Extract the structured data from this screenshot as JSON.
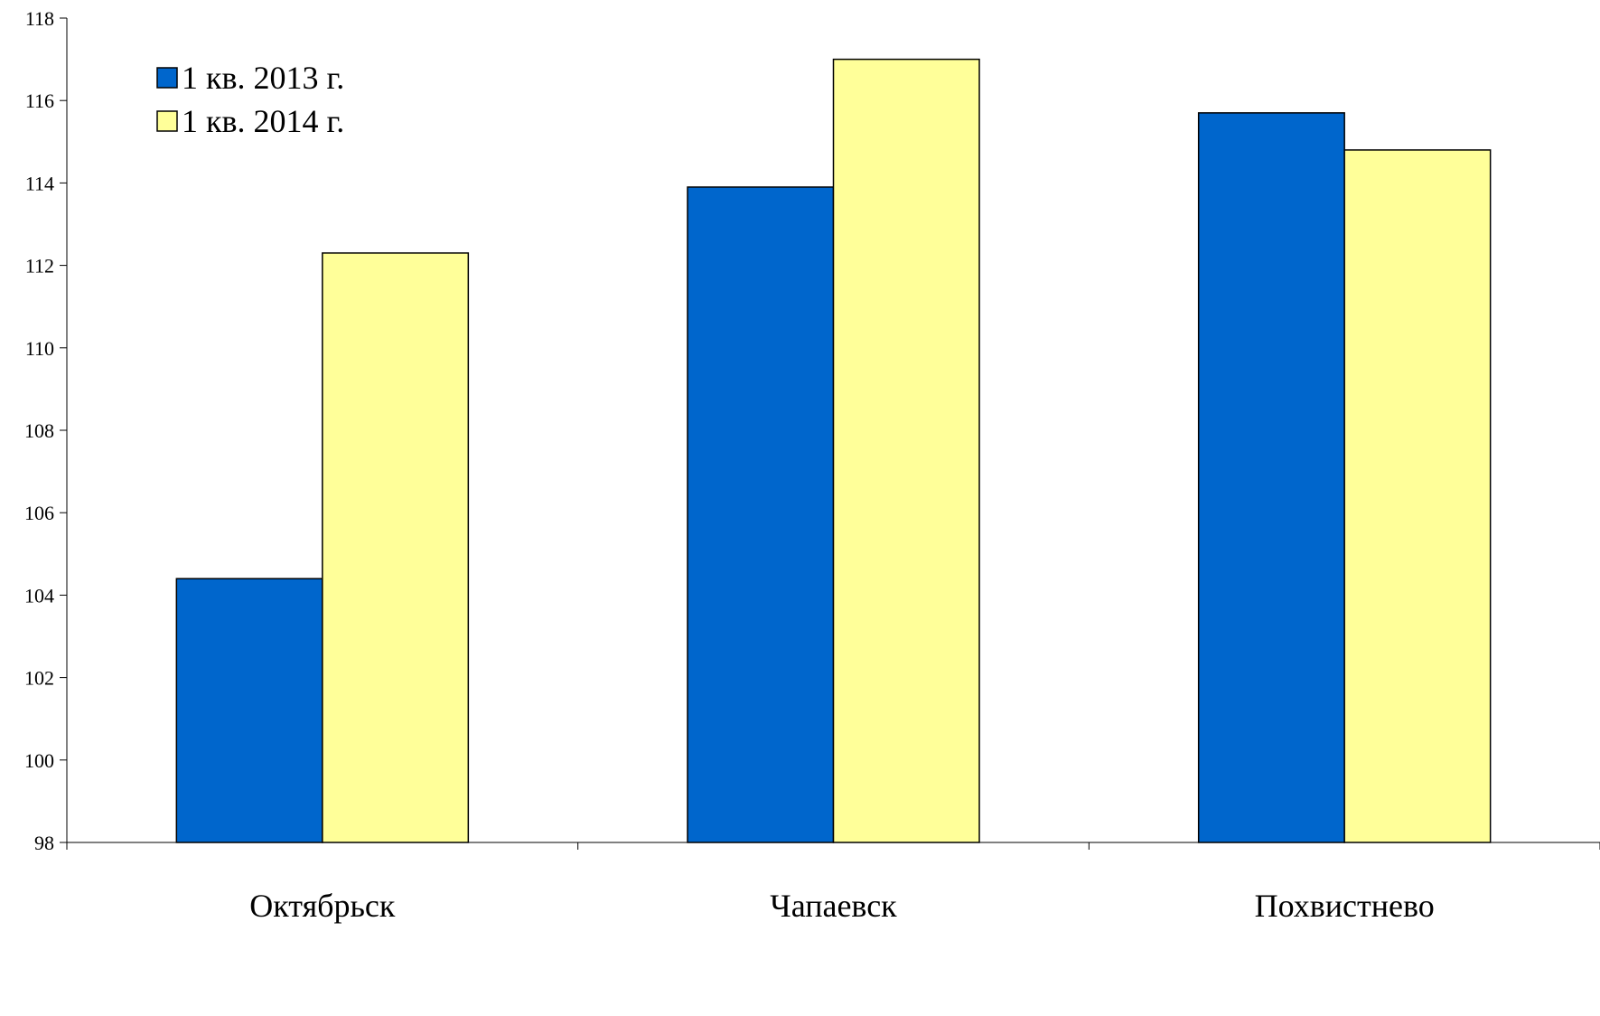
{
  "chart_data": {
    "type": "bar",
    "categories": [
      "Октябрьск",
      "Чапаевск",
      "Похвистнево"
    ],
    "series": [
      {
        "name": "1 кв. 2013 г.",
        "values": [
          104.4,
          113.9,
          115.7
        ],
        "color": "#0066CC"
      },
      {
        "name": "1 кв. 2014 г.",
        "values": [
          112.3,
          117.0,
          114.8
        ],
        "color": "#FFFF99"
      }
    ],
    "ylim": [
      98,
      118
    ],
    "yticks": [
      "98",
      "100",
      "102",
      "104",
      "106",
      "108",
      "110",
      "112",
      "114",
      "116",
      "118"
    ],
    "title": "",
    "xlabel": "",
    "ylabel": "",
    "grid": false,
    "legend_position": "top-left"
  }
}
